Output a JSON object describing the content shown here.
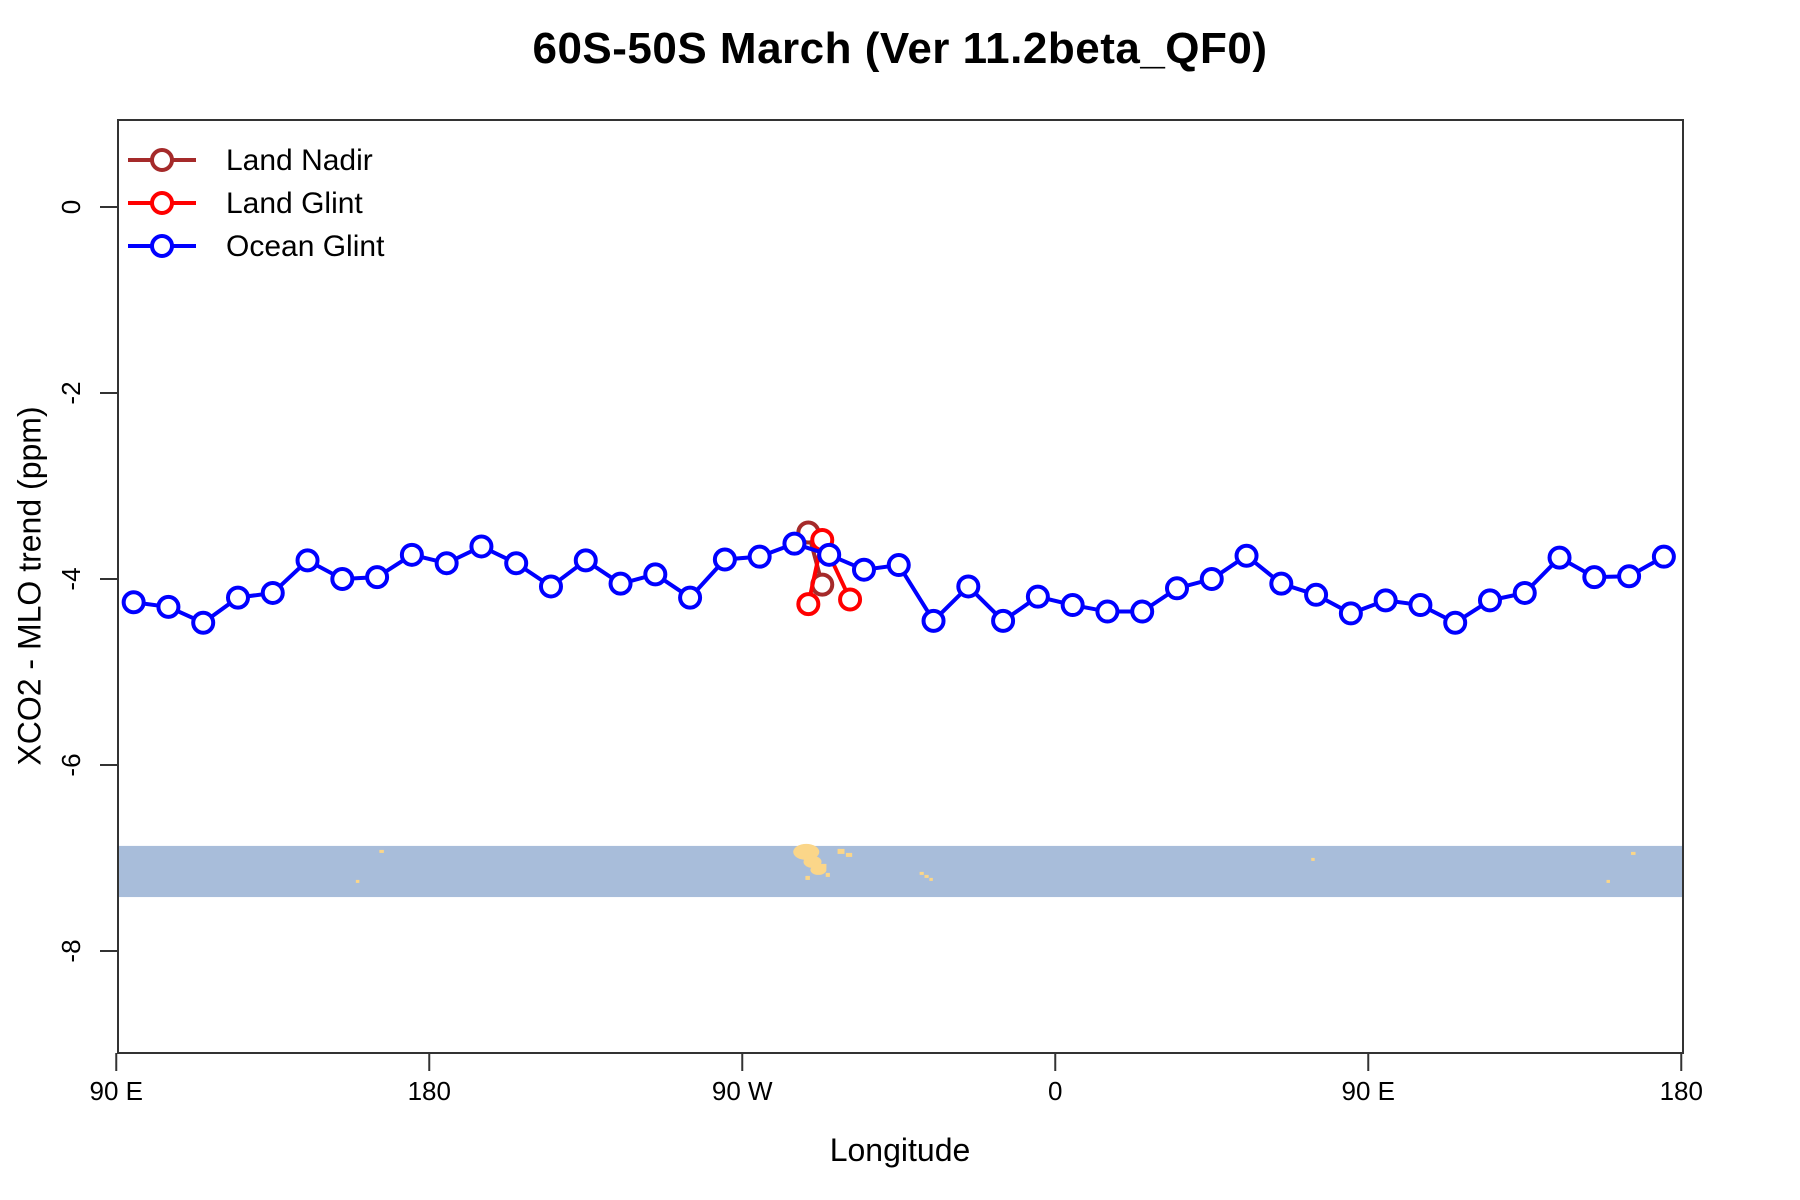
{
  "title": "60S-50S March (Ver 11.2beta_QF0)",
  "chart_data": {
    "type": "line",
    "title": "60S-50S March (Ver 11.2beta_QF0)",
    "xlabel": "Longitude",
    "ylabel": "XCO2 - MLO trend (ppm)",
    "x_axis": {
      "note": "longitude axis wraps eastward starting at 90E; internal coordinate = degrees east of 0 (continues past 360)",
      "range": [
        90.5,
        540.5
      ],
      "ticks": [
        {
          "lon": 90,
          "label": "90 E"
        },
        {
          "lon": 180,
          "label": "180"
        },
        {
          "lon": 270,
          "label": "90 W"
        },
        {
          "lon": 360,
          "label": "0"
        },
        {
          "lon": 450,
          "label": "90 E"
        },
        {
          "lon": 540,
          "label": "180"
        }
      ]
    },
    "y_axis": {
      "units": "ppm",
      "range": [
        -9.1,
        0.94
      ],
      "ticks": [
        0,
        -2,
        -4,
        -6,
        -8
      ]
    },
    "grid": false,
    "legend_position": "top-left-inside",
    "series": [
      {
        "name": "Land Nadir",
        "color": "#A52A2A",
        "points": [
          [
            289,
            -3.5
          ],
          [
            293,
            -4.06
          ]
        ]
      },
      {
        "name": "Land Glint",
        "color": "#FF0000",
        "points": [
          [
            289,
            -4.27
          ],
          [
            293,
            -3.58
          ],
          [
            301,
            -4.22
          ]
        ]
      },
      {
        "name": "Ocean Glint",
        "color": "#0000FF",
        "points": [
          [
            95,
            -4.25
          ],
          [
            105,
            -4.3
          ],
          [
            115,
            -4.47
          ],
          [
            125,
            -4.2
          ],
          [
            135,
            -4.15
          ],
          [
            145,
            -3.8
          ],
          [
            155,
            -4.0
          ],
          [
            165,
            -3.98
          ],
          [
            175,
            -3.74
          ],
          [
            185,
            -3.83
          ],
          [
            195,
            -3.65
          ],
          [
            205,
            -3.83
          ],
          [
            215,
            -4.08
          ],
          [
            225,
            -3.8
          ],
          [
            235,
            -4.05
          ],
          [
            245,
            -3.95
          ],
          [
            255,
            -4.2
          ],
          [
            265,
            -3.79
          ],
          [
            275,
            -3.76
          ],
          [
            285,
            -3.62
          ],
          [
            295,
            -3.74
          ],
          [
            305,
            -3.9
          ],
          [
            315,
            -3.85
          ],
          [
            325,
            -4.45
          ],
          [
            335,
            -4.08
          ],
          [
            345,
            -4.45
          ],
          [
            355,
            -4.19
          ],
          [
            365,
            -4.28
          ],
          [
            375,
            -4.35
          ],
          [
            385,
            -4.35
          ],
          [
            395,
            -4.1
          ],
          [
            405,
            -4.0
          ],
          [
            415,
            -3.75
          ],
          [
            425,
            -4.05
          ],
          [
            435,
            -4.17
          ],
          [
            445,
            -4.37
          ],
          [
            455,
            -4.23
          ],
          [
            465,
            -4.28
          ],
          [
            475,
            -4.47
          ],
          [
            485,
            -4.23
          ],
          [
            495,
            -4.15
          ],
          [
            505,
            -3.77
          ],
          [
            515,
            -3.98
          ],
          [
            525,
            -3.97
          ],
          [
            535,
            -3.76
          ]
        ]
      }
    ],
    "map_strip": {
      "description": "world-map band of the 50S-60S latitude zone drawn across the plot",
      "ocean_color": "#a8bdda",
      "land_color": "#fbd689",
      "ppm_top": -6.87,
      "ppm_bottom": -7.42,
      "features": [
        {
          "t": "e",
          "lon": 288.4,
          "dy": 6,
          "wd": 7.5,
          "h": 16
        },
        {
          "t": "e",
          "lon": 290.2,
          "dy": 16,
          "wd": 5.2,
          "h": 12
        },
        {
          "t": "e",
          "lon": 291.9,
          "dy": 24,
          "wd": 4.6,
          "h": 10
        },
        {
          "t": "r",
          "lon": 293.3,
          "dy": 18,
          "wd": 1.8,
          "h": 5
        },
        {
          "t": "r",
          "lon": 288.8,
          "dy": 30,
          "wd": 1.3,
          "h": 4
        },
        {
          "t": "r",
          "lon": 294.6,
          "dy": 27,
          "wd": 1.2,
          "h": 4
        },
        {
          "t": "r",
          "lon": 298.4,
          "dy": 3,
          "wd": 2.0,
          "h": 5
        },
        {
          "t": "r",
          "lon": 300.7,
          "dy": 7,
          "wd": 1.8,
          "h": 4
        },
        {
          "t": "r",
          "lon": 166.3,
          "dy": 4,
          "wd": 1.3,
          "h": 3
        },
        {
          "t": "r",
          "lon": 159.4,
          "dy": 34,
          "wd": 1.0,
          "h": 3
        },
        {
          "t": "r",
          "lon": 526.2,
          "dy": 6,
          "wd": 1.3,
          "h": 3
        },
        {
          "t": "r",
          "lon": 519.0,
          "dy": 34,
          "wd": 1.0,
          "h": 3
        },
        {
          "t": "r",
          "lon": 434.1,
          "dy": 12,
          "wd": 1.0,
          "h": 3
        },
        {
          "t": "r",
          "lon": 321.6,
          "dy": 26,
          "wd": 1.2,
          "h": 3
        },
        {
          "t": "r",
          "lon": 323.0,
          "dy": 29,
          "wd": 1.2,
          "h": 3
        },
        {
          "t": "r",
          "lon": 324.3,
          "dy": 32,
          "wd": 1.0,
          "h": 3
        }
      ]
    }
  },
  "legend": {
    "entries": [
      "Land Nadir",
      "Land Glint",
      "Ocean Glint"
    ]
  }
}
